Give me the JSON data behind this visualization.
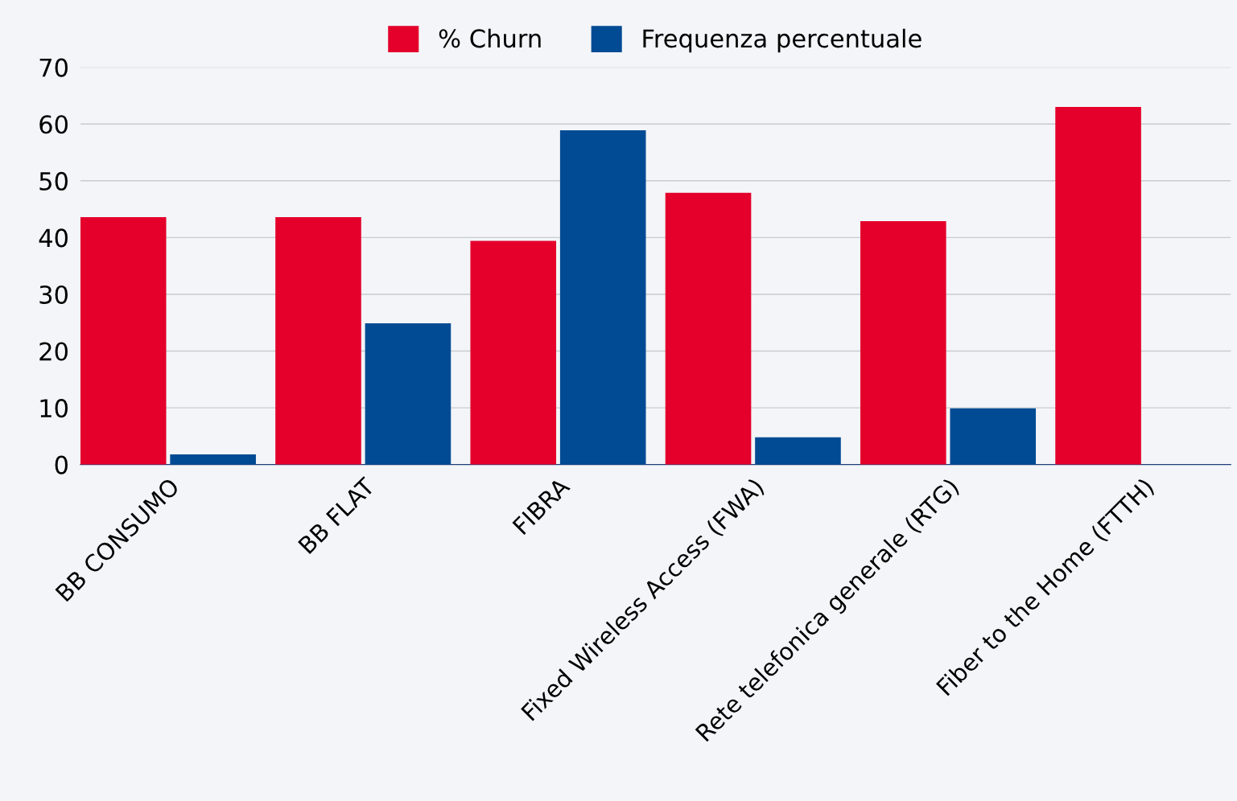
{
  "chart_data": {
    "type": "bar",
    "categories": [
      "BB CONSUMO",
      "BB FLAT",
      "FIBRA",
      "Fixed Wireless Access (FWA)",
      "Rete telefonica generale (RTG)",
      "Fiber to the Home (FTTH)"
    ],
    "series": [
      {
        "name": "% Churn",
        "color": "#e4002b",
        "values": [
          43.6,
          43.6,
          39.4,
          47.9,
          42.9,
          63.0
        ]
      },
      {
        "name": "Frequenza percentuale",
        "color": "#004b93",
        "values": [
          1.8,
          24.9,
          58.9,
          4.8,
          9.9,
          0
        ]
      }
    ],
    "ylim": [
      0,
      70
    ],
    "yticks": [
      0,
      10,
      20,
      30,
      40,
      50,
      60,
      70
    ],
    "grid": "y",
    "legend": "top"
  }
}
